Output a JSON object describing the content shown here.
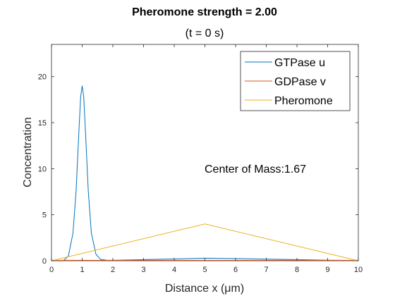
{
  "chart_data": {
    "type": "line",
    "title": "Pheromone strength = 2.00",
    "subtitle": "(t = 0 s)",
    "xlabel": "Distance x (μm)",
    "ylabel": "Concentration",
    "xlim": [
      0,
      10
    ],
    "ylim": [
      0,
      23.5
    ],
    "x_ticks": [
      0,
      1,
      2,
      3,
      4,
      5,
      6,
      7,
      8,
      9,
      10
    ],
    "y_ticks": [
      0,
      5,
      10,
      15,
      20
    ],
    "grid": false,
    "legend_position": "top-right",
    "annotation": "Center of Mass:1.67",
    "series": [
      {
        "name": "GTPase u",
        "color": "#0072BD",
        "x": [
          0,
          0.4,
          0.55,
          0.7,
          0.8,
          0.9,
          0.95,
          1.0,
          1.05,
          1.1,
          1.2,
          1.3,
          1.45,
          1.6,
          1.8,
          2.0,
          3.0,
          4.0,
          5.0,
          6.0,
          7.0,
          8.0,
          9.0,
          10.0
        ],
        "y": [
          0.0,
          0.05,
          0.5,
          3.0,
          7.5,
          14.5,
          17.8,
          19.0,
          17.8,
          14.5,
          7.5,
          3.0,
          0.7,
          0.15,
          0.06,
          0.05,
          0.12,
          0.2,
          0.28,
          0.24,
          0.18,
          0.12,
          0.06,
          0.02
        ]
      },
      {
        "name": "GDPase v",
        "color": "#D95319",
        "x": [
          0,
          1,
          2,
          3,
          4,
          5,
          6,
          7,
          8,
          9,
          10
        ],
        "y": [
          0.05,
          0.05,
          0.05,
          0.05,
          0.05,
          0.05,
          0.05,
          0.05,
          0.05,
          0.05,
          0.05
        ]
      },
      {
        "name": "Pheromone",
        "color": "#EDB120",
        "x": [
          0,
          5,
          10
        ],
        "y": [
          0,
          4,
          0
        ]
      }
    ]
  }
}
